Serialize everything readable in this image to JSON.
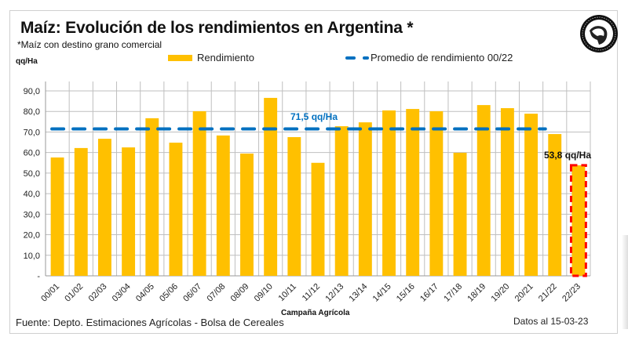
{
  "header": {
    "title": "Maíz: Evolución de los rendimientos en Argentina *",
    "subtitle": "*Maíz con destino grano comercial",
    "unit_label": "qq/Ha"
  },
  "legend": {
    "bar_label": "Rendimiento",
    "line_label": "Promedio de rendimiento 00/22"
  },
  "logo": {
    "icon": "bolsa-de-cereales-logo-icon"
  },
  "footer": {
    "source": "Fuente: Depto. Estimaciones Agrícolas - Bolsa de Cereales",
    "date": "Datos al 15-03-23"
  },
  "annotations": {
    "average": "71,5 qq/Ha",
    "current": "53,8 qq/Ha"
  },
  "colors": {
    "bar": "#FFC000",
    "average_line": "#0070C0",
    "highlight_border": "#FF0000",
    "grid": "#BFBFBF"
  },
  "chart_data": {
    "type": "bar",
    "title": "Maíz: Evolución de los rendimientos en Argentina *",
    "subtitle": "*Maíz con destino grano comercial",
    "xlabel": "Campaña Agrícola",
    "ylabel": "qq/Ha",
    "ylim": [
      0,
      90
    ],
    "yticks": [
      0,
      10,
      20,
      30,
      40,
      50,
      60,
      70,
      80,
      90
    ],
    "ytick_labels": [
      "-",
      "10,0",
      "20,0",
      "30,0",
      "40,0",
      "50,0",
      "60,0",
      "70,0",
      "80,0",
      "90,0"
    ],
    "grid": true,
    "legend_position": "top",
    "categories": [
      "00/01",
      "01/02",
      "02/03",
      "03/04",
      "04/05",
      "05/06",
      "06/07",
      "07/08",
      "08/09",
      "09/10",
      "10/11",
      "11/12",
      "12/13",
      "13/14",
      "14/15",
      "15/16",
      "16/17",
      "17/18",
      "18/19",
      "19/20",
      "20/21",
      "21/22",
      "22/23"
    ],
    "series": [
      {
        "name": "Rendimiento",
        "type": "bar",
        "values": [
          57.6,
          62.2,
          66.7,
          62.5,
          76.7,
          64.8,
          80.1,
          68.3,
          59.5,
          86.6,
          67.5,
          55.0,
          72.8,
          74.7,
          80.5,
          81.2,
          80.1,
          59.9,
          83.1,
          81.6,
          78.9,
          69.0,
          53.8
        ]
      },
      {
        "name": "Promedio de rendimiento 00/22",
        "type": "line",
        "style": "dashed",
        "value": 71.5,
        "x_range": [
          "00/01",
          "21/22"
        ]
      }
    ],
    "highlight": {
      "category": "22/23",
      "style": "red dashed border"
    },
    "annotations": [
      {
        "text": "71,5 qq/Ha",
        "target": "average line"
      },
      {
        "text": "53,8 qq/Ha",
        "target": "22/23"
      }
    ]
  }
}
